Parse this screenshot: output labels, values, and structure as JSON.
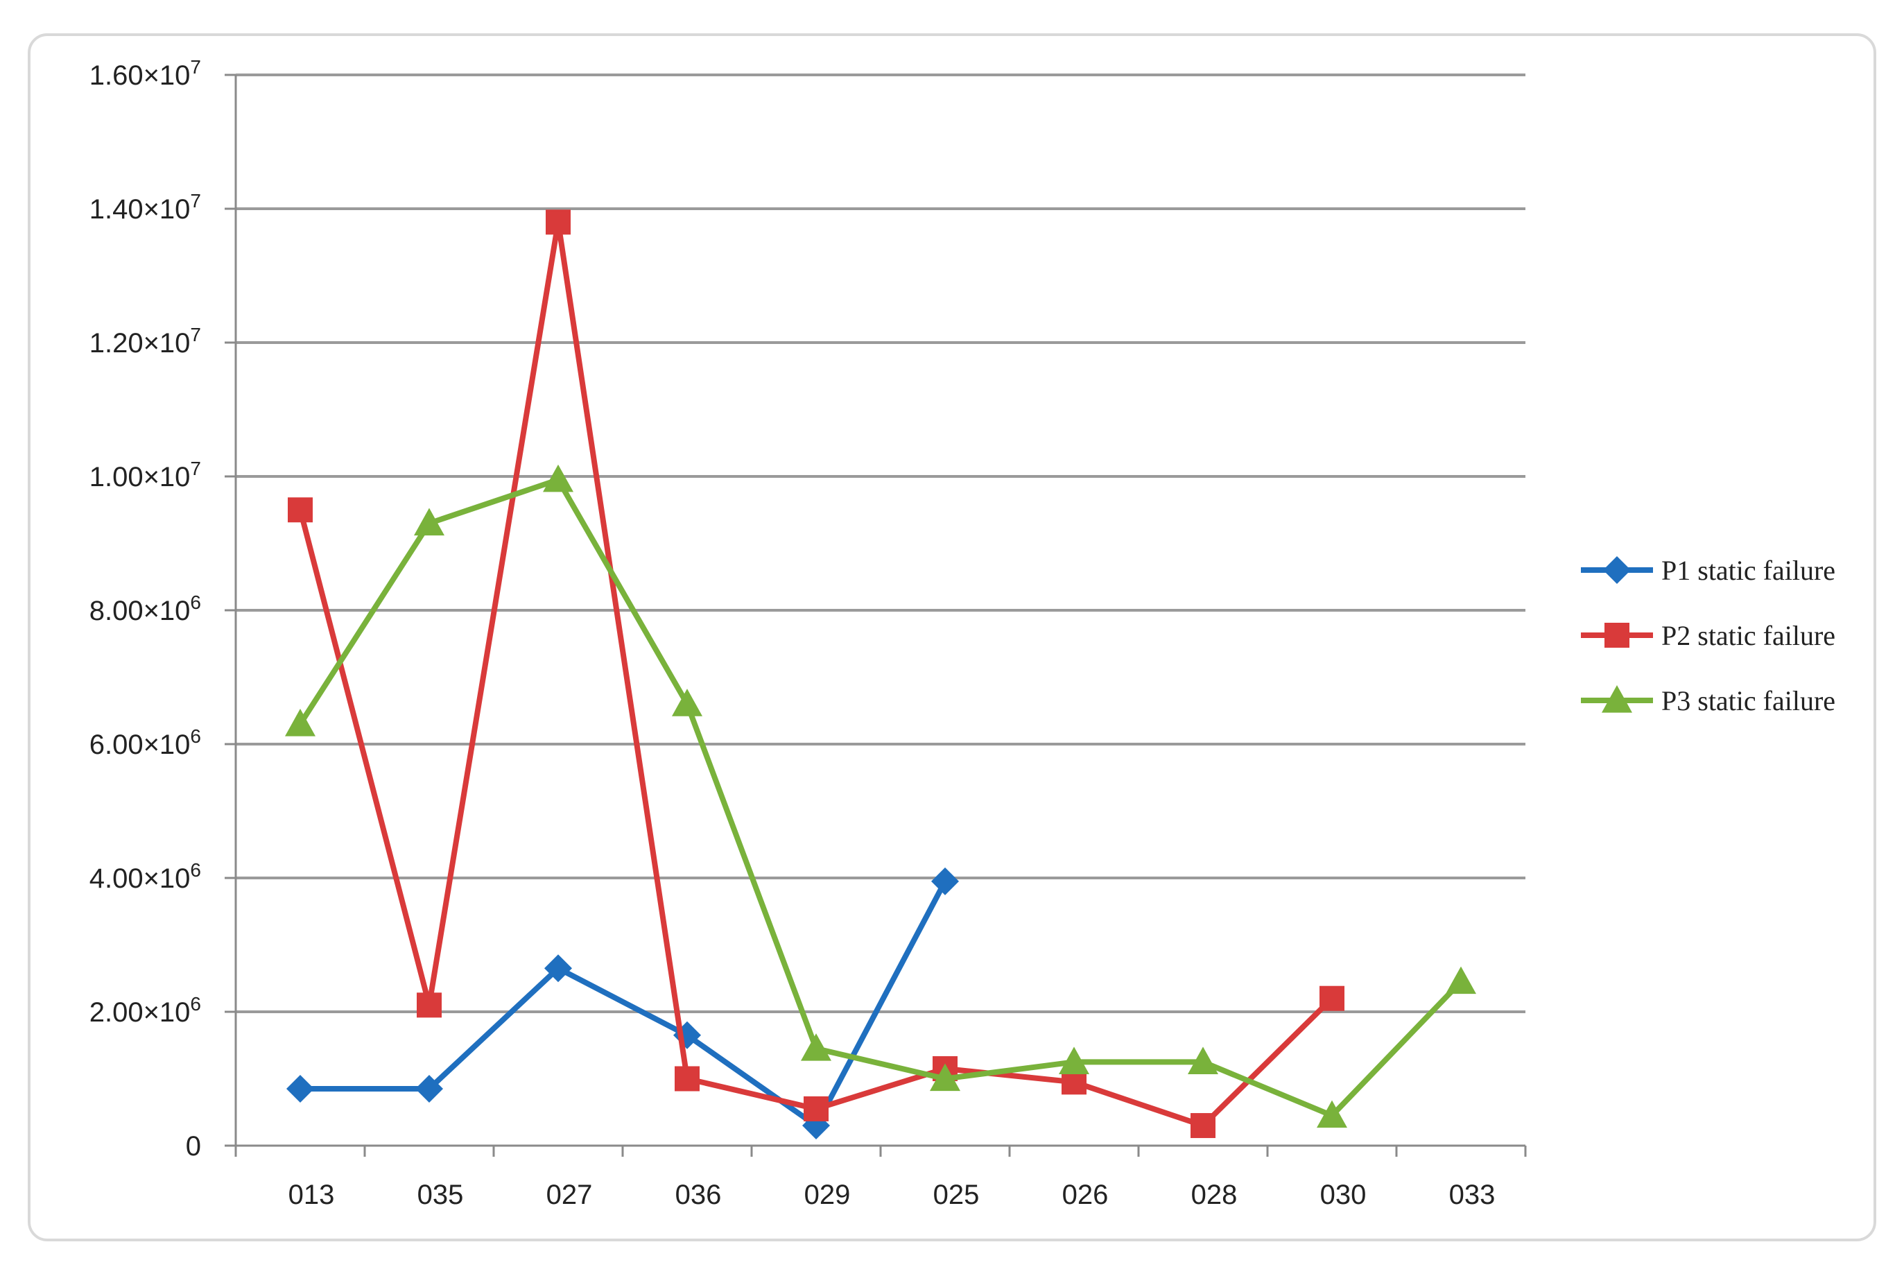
{
  "chart_data": {
    "type": "line",
    "categories": [
      "013",
      "035",
      "027",
      "036",
      "029",
      "025",
      "026",
      "028",
      "030",
      "033"
    ],
    "y_ticks": [
      {
        "value": 0,
        "label": "0"
      },
      {
        "value": 2000000,
        "label": "2.00×10",
        "exp": "6"
      },
      {
        "value": 4000000,
        "label": "4.00×10",
        "exp": "6"
      },
      {
        "value": 6000000,
        "label": "6.00×10",
        "exp": "6"
      },
      {
        "value": 8000000,
        "label": "8.00×10",
        "exp": "6"
      },
      {
        "value": 10000000,
        "label": "1.00×10",
        "exp": "7"
      },
      {
        "value": 12000000,
        "label": "1.20×10",
        "exp": "7"
      },
      {
        "value": 14000000,
        "label": "1.40×10",
        "exp": "7"
      },
      {
        "value": 16000000,
        "label": "1.60×10",
        "exp": "7"
      }
    ],
    "ylim": [
      0,
      16000000
    ],
    "grid": true,
    "legend_position": "right",
    "series": [
      {
        "name": "P1 static failure",
        "color": "#1f6fbf",
        "marker": "diamond",
        "values": [
          850000,
          850000,
          2650000,
          1650000,
          300000,
          3950000,
          null,
          null,
          null,
          null
        ]
      },
      {
        "name": "P2 static failure",
        "color": "#d93a3a",
        "marker": "square",
        "values": [
          9500000,
          2100000,
          13800000,
          1000000,
          550000,
          1150000,
          950000,
          300000,
          2200000,
          null
        ]
      },
      {
        "name": "P3 static failure",
        "color": "#79b23b",
        "marker": "triangle",
        "values": [
          6300000,
          9300000,
          9950000,
          6600000,
          1450000,
          1000000,
          1250000,
          1250000,
          450000,
          2450000
        ]
      }
    ]
  }
}
